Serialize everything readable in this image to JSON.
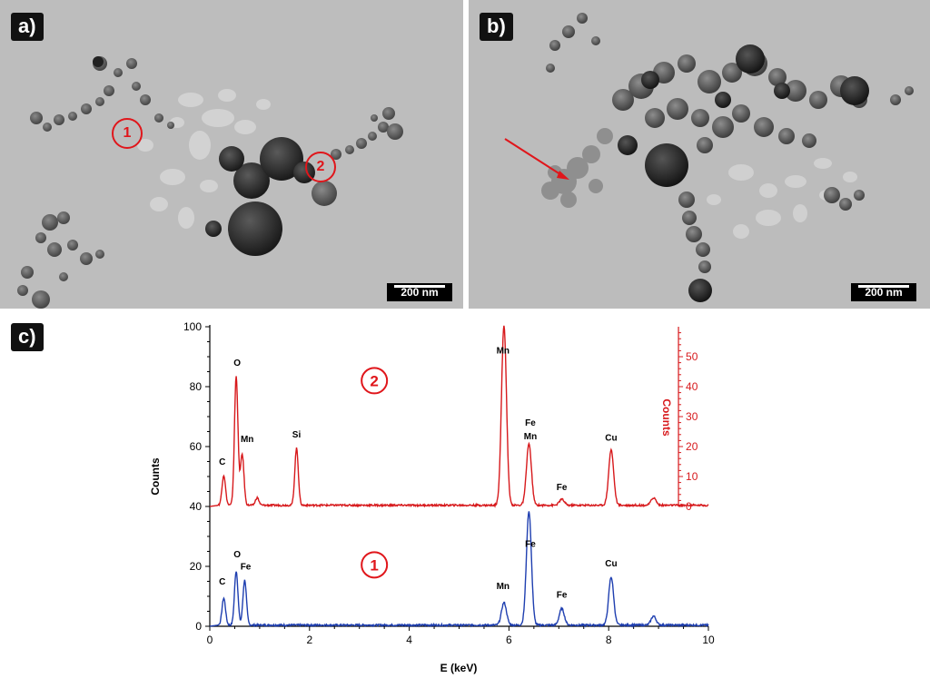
{
  "panels": {
    "a": {
      "label": "a)",
      "scale": "200 nm",
      "markers": [
        "1",
        "2"
      ]
    },
    "b": {
      "label": "b)",
      "scale": "200 nm"
    },
    "c": {
      "label": "c)"
    }
  },
  "chart_data": {
    "type": "line",
    "xlabel": "E (keV)",
    "ylabel": "Counts",
    "ylabel_right": "Counts",
    "xlim": [
      0,
      10
    ],
    "ylim": [
      0,
      100
    ],
    "ylim_right": [
      0,
      60
    ],
    "x_ticks": [
      0,
      2,
      4,
      6,
      8,
      10
    ],
    "y_ticks": [
      0,
      20,
      40,
      60,
      80,
      100
    ],
    "y_ticks_right": [
      0,
      10,
      20,
      30,
      40,
      50
    ],
    "colors": {
      "spectrum_1": "#1f3fb0",
      "spectrum_2": "#d7191c"
    },
    "series": [
      {
        "name": "1",
        "baseline": 0,
        "peaks": [
          {
            "x": 0.28,
            "y": 9
          },
          {
            "x": 0.53,
            "y": 18
          },
          {
            "x": 0.7,
            "y": 15
          },
          {
            "x": 5.9,
            "y": 7.5
          },
          {
            "x": 6.4,
            "y": 38
          },
          {
            "x": 7.06,
            "y": 5.5
          },
          {
            "x": 8.05,
            "y": 16
          },
          {
            "x": 8.9,
            "y": 3
          }
        ],
        "labels": [
          {
            "text": "C",
            "x": 0.25,
            "y": 14
          },
          {
            "text": "O",
            "x": 0.55,
            "y": 23
          },
          {
            "text": "Fe",
            "x": 0.72,
            "y": 19
          },
          {
            "text": "Mn",
            "x": 5.88,
            "y": 12.5
          },
          {
            "text": "Fe",
            "x": 6.43,
            "y": 26.5
          },
          {
            "text": "Fe",
            "x": 7.06,
            "y": 9.5
          },
          {
            "text": "Cu",
            "x": 8.05,
            "y": 20
          }
        ]
      },
      {
        "name": "2",
        "baseline": 40,
        "peaks": [
          {
            "x": 0.28,
            "y": 50
          },
          {
            "x": 0.53,
            "y": 83
          },
          {
            "x": 0.65,
            "y": 57
          },
          {
            "x": 0.95,
            "y": 42.5
          },
          {
            "x": 1.74,
            "y": 59
          },
          {
            "x": 5.9,
            "y": 100
          },
          {
            "x": 6.4,
            "y": 60.5
          },
          {
            "x": 7.06,
            "y": 42
          },
          {
            "x": 8.05,
            "y": 58.5
          },
          {
            "x": 8.9,
            "y": 42.5
          }
        ],
        "labels": [
          {
            "text": "C",
            "x": 0.25,
            "y": 54
          },
          {
            "text": "O",
            "x": 0.55,
            "y": 87
          },
          {
            "text": "Mn",
            "x": 0.75,
            "y": 61.5
          },
          {
            "text": "Si",
            "x": 1.74,
            "y": 63
          },
          {
            "text": "Mn",
            "x": 5.88,
            "y": 91
          },
          {
            "text": "Fe",
            "x": 6.43,
            "y": 67
          },
          {
            "text": "Mn",
            "x": 6.43,
            "y": 62.5
          },
          {
            "text": "Fe",
            "x": 7.06,
            "y": 45.5
          },
          {
            "text": "Cu",
            "x": 8.05,
            "y": 62
          }
        ]
      }
    ],
    "annotations": [
      {
        "text": "2",
        "x": 3.3,
        "y": 82
      },
      {
        "text": "1",
        "x": 3.3,
        "y": 20.5
      }
    ]
  }
}
